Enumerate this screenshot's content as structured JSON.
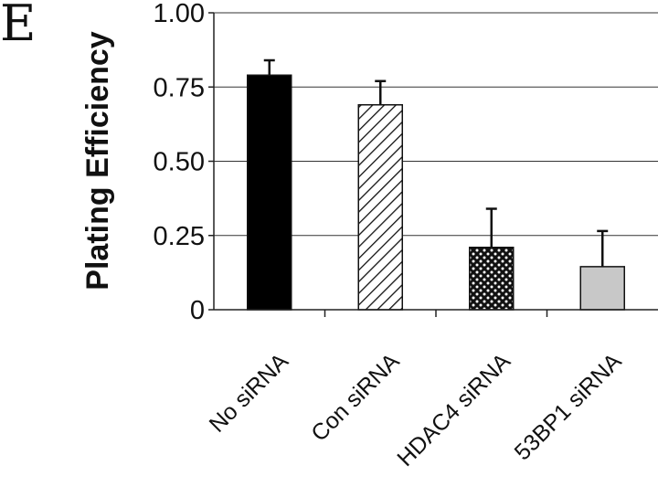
{
  "panel_label": "E",
  "chart_data": {
    "type": "bar",
    "title": "",
    "ylabel": "Plating Efficiency",
    "xlabel": "",
    "categories": [
      "No siRNA",
      "Con siRNA",
      "HDAC4 siRNA",
      "53BP1 siRNA"
    ],
    "values": [
      0.79,
      0.69,
      0.21,
      0.145
    ],
    "errors": [
      0.05,
      0.08,
      0.13,
      0.12
    ],
    "ylim": [
      0,
      1.0
    ],
    "yticks": [
      0,
      0.25,
      0.5,
      0.75,
      1.0
    ],
    "ytick_labels": [
      "0",
      "0.25",
      "0.50",
      "0.75",
      "1.00"
    ],
    "grid": true,
    "legend": "none",
    "fills": [
      "solid-black",
      "diagonal-hatch",
      "checker-dots",
      "solid-light-gray"
    ],
    "colors": {
      "black": "#000000",
      "gray": "#c8c8c8",
      "outline": "#111111"
    }
  }
}
